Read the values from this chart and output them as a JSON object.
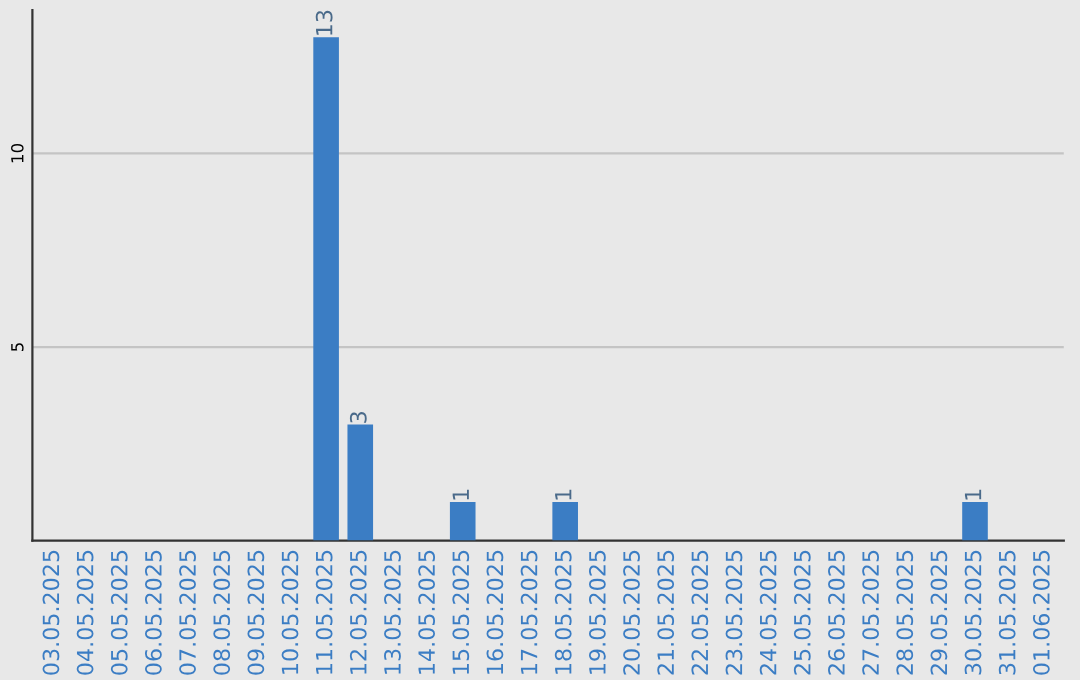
{
  "chart_data": {
    "type": "bar",
    "categories": [
      "03.05.2025",
      "04.05.2025",
      "05.05.2025",
      "06.05.2025",
      "07.05.2025",
      "08.05.2025",
      "09.05.2025",
      "10.05.2025",
      "11.05.2025",
      "12.05.2025",
      "13.05.2025",
      "14.05.2025",
      "15.05.2025",
      "16.05.2025",
      "17.05.2025",
      "18.05.2025",
      "19.05.2025",
      "20.05.2025",
      "21.05.2025",
      "22.05.2025",
      "23.05.2025",
      "24.05.2025",
      "25.05.2025",
      "26.05.2025",
      "27.05.2025",
      "28.05.2025",
      "29.05.2025",
      "30.05.2025",
      "31.05.2025",
      "01.06.2025"
    ],
    "values": [
      0,
      0,
      0,
      0,
      0,
      0,
      0,
      0,
      13,
      3,
      0,
      0,
      1,
      0,
      0,
      1,
      0,
      0,
      0,
      0,
      0,
      0,
      0,
      0,
      0,
      0,
      0,
      1,
      0,
      0
    ],
    "value_labels": [
      null,
      null,
      null,
      null,
      null,
      null,
      null,
      null,
      "13",
      "3",
      null,
      null,
      "1",
      null,
      null,
      "1",
      null,
      null,
      null,
      null,
      null,
      null,
      null,
      null,
      null,
      null,
      null,
      "1",
      null,
      null
    ],
    "color": "#3b7dc4",
    "ylim": [
      0,
      13.7
    ],
    "yticks": [
      5,
      10
    ],
    "grid": "y"
  }
}
